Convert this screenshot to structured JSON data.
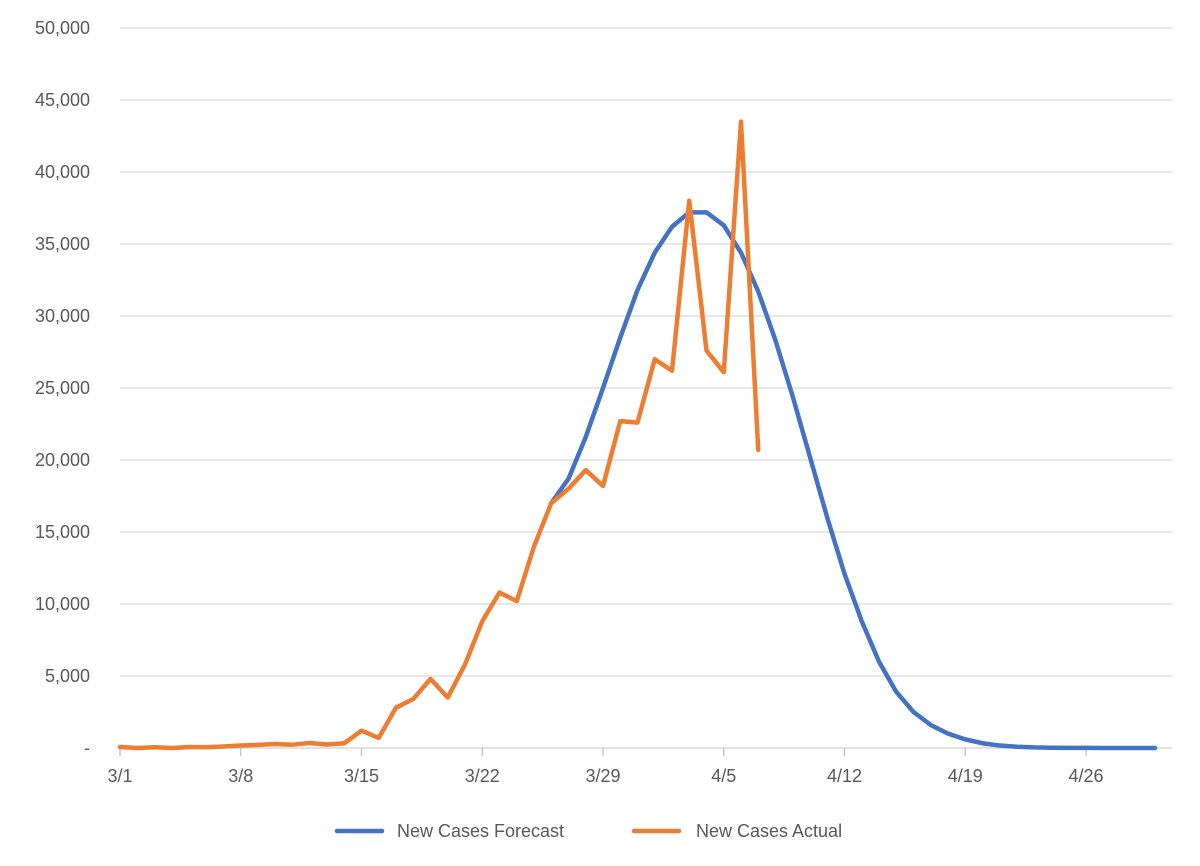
{
  "chart_data": {
    "type": "line",
    "title": "",
    "xlabel": "",
    "ylabel": "",
    "ylim": [
      0,
      50000
    ],
    "grid": true,
    "legend_position": "bottom",
    "y_ticks": [
      {
        "value": 0,
        "label": "-"
      },
      {
        "value": 5000,
        "label": "5,000"
      },
      {
        "value": 10000,
        "label": "10,000"
      },
      {
        "value": 15000,
        "label": "15,000"
      },
      {
        "value": 20000,
        "label": "20,000"
      },
      {
        "value": 25000,
        "label": "25,000"
      },
      {
        "value": 30000,
        "label": "30,000"
      },
      {
        "value": 35000,
        "label": "35,000"
      },
      {
        "value": 40000,
        "label": "40,000"
      },
      {
        "value": 45000,
        "label": "45,000"
      },
      {
        "value": 50000,
        "label": "50,000"
      }
    ],
    "x_ticks": [
      "3/1",
      "3/8",
      "3/15",
      "3/22",
      "3/29",
      "4/5",
      "4/12",
      "4/19",
      "4/26"
    ],
    "x": [
      "3/1",
      "3/2",
      "3/3",
      "3/4",
      "3/5",
      "3/6",
      "3/7",
      "3/8",
      "3/9",
      "3/10",
      "3/11",
      "3/12",
      "3/13",
      "3/14",
      "3/15",
      "3/16",
      "3/17",
      "3/18",
      "3/19",
      "3/20",
      "3/21",
      "3/22",
      "3/23",
      "3/24",
      "3/25",
      "3/26",
      "3/27",
      "3/28",
      "3/29",
      "3/30",
      "3/31",
      "4/1",
      "4/2",
      "4/3",
      "4/4",
      "4/5",
      "4/6",
      "4/7",
      "4/8",
      "4/9",
      "4/10",
      "4/11",
      "4/12",
      "4/13",
      "4/14",
      "4/15",
      "4/16",
      "4/17",
      "4/18",
      "4/19",
      "4/20",
      "4/21",
      "4/22",
      "4/23",
      "4/24",
      "4/25",
      "4/26",
      "4/27",
      "4/28",
      "4/29",
      "4/30"
    ],
    "series": [
      {
        "name": "New Cases Forecast",
        "color": "#4472C4",
        "values": [
          null,
          null,
          null,
          null,
          null,
          null,
          null,
          null,
          null,
          null,
          null,
          null,
          null,
          null,
          null,
          null,
          null,
          null,
          null,
          null,
          null,
          null,
          null,
          null,
          null,
          17000,
          18700,
          21600,
          25000,
          28500,
          31800,
          34400,
          36200,
          37200,
          37200,
          36300,
          34400,
          31700,
          28300,
          24400,
          20200,
          16000,
          12100,
          8800,
          6000,
          3900,
          2500,
          1600,
          1000,
          600,
          330,
          170,
          90,
          40,
          20,
          10,
          5,
          2,
          1,
          0,
          0
        ]
      },
      {
        "name": "New Cases Actual",
        "color": "#ED7D31",
        "values": [
          70,
          0,
          50,
          0,
          70,
          50,
          100,
          170,
          220,
          280,
          230,
          350,
          240,
          330,
          1200,
          700,
          2800,
          3400,
          4800,
          3500,
          5800,
          8800,
          10800,
          10200,
          14000,
          17000,
          18000,
          19300,
          18200,
          22700,
          22600,
          27000,
          26200,
          38000,
          27600,
          26100,
          43500,
          20700,
          null,
          null,
          null,
          null,
          null,
          null,
          null,
          null,
          null,
          null,
          null,
          null,
          null,
          null,
          null,
          null,
          null,
          null,
          null,
          null,
          null,
          null,
          null
        ]
      }
    ]
  }
}
